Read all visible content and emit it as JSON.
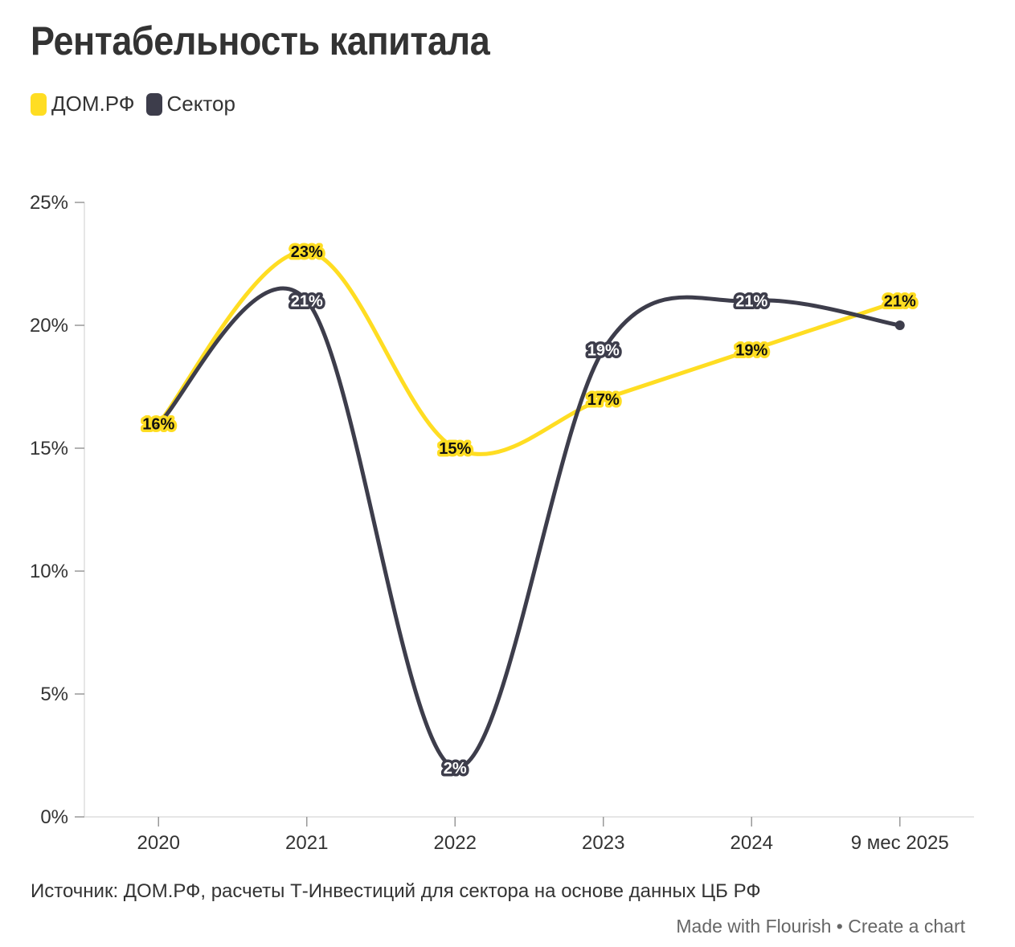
{
  "title": "Рентабельность капитала",
  "legend": [
    {
      "name": "ДОМ.РФ",
      "color": "#ffdd22"
    },
    {
      "name": "Сектор",
      "color": "#3d3d4b"
    }
  ],
  "source": "Источник: ДОМ.РФ, расчеты Т-Инвестиций для сектора на основе данных ЦБ РФ",
  "footer": {
    "made_with": "Made with Flourish",
    "separator": "•",
    "create": "Create a chart"
  },
  "chart_data": {
    "type": "line",
    "categories": [
      "2020",
      "2021",
      "2022",
      "2023",
      "2024",
      "9 мес 2025"
    ],
    "series": [
      {
        "name": "ДОМ.РФ",
        "color": "#ffdd22",
        "values": [
          16,
          23,
          15,
          17,
          19,
          21
        ],
        "labels": [
          "16%",
          "23%",
          "15%",
          "17%",
          "19%",
          "21%"
        ]
      },
      {
        "name": "Сектор",
        "color": "#3d3d4b",
        "values": [
          16,
          21,
          2,
          19,
          21,
          20
        ],
        "labels": [
          "",
          "21%",
          "2%",
          "19%",
          "21%",
          ""
        ]
      }
    ],
    "ylim": [
      0,
      25
    ],
    "yticks": [
      0,
      5,
      10,
      15,
      20,
      25
    ],
    "ytick_labels": [
      "0%",
      "5%",
      "10%",
      "15%",
      "20%",
      "25%"
    ],
    "grid": false,
    "legend": "top-left"
  }
}
